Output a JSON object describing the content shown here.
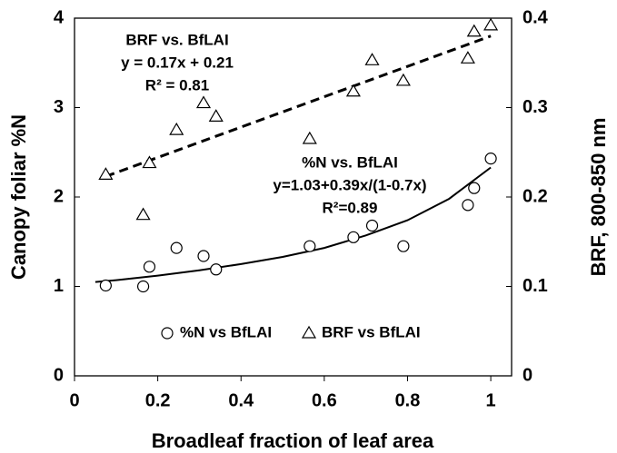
{
  "chart_data": {
    "type": "scatter",
    "xlabel": "Broadleaf fraction of leaf area",
    "ylabel": "Canopy foliar %N",
    "y2label": "BRF, 800-850 nm",
    "xlim": [
      0,
      1.05
    ],
    "xticks": [
      0,
      0.2,
      0.4,
      0.6,
      0.8,
      1
    ],
    "ylim": [
      0,
      4
    ],
    "yticks": [
      0,
      1,
      2,
      3,
      4
    ],
    "y2lim": [
      0,
      0.4
    ],
    "y2ticks": [
      0,
      0.1,
      0.2,
      0.3,
      0.4
    ],
    "series": [
      {
        "name": "%N vs BfLAI",
        "marker": "circle",
        "color": "#000000",
        "x": [
          0.075,
          0.165,
          0.18,
          0.245,
          0.31,
          0.34,
          0.565,
          0.67,
          0.715,
          0.79,
          0.945,
          0.96,
          1.0
        ],
        "values": [
          1.01,
          1.0,
          1.22,
          1.43,
          1.34,
          1.19,
          1.45,
          1.55,
          1.68,
          1.45,
          1.91,
          2.1,
          2.43
        ]
      },
      {
        "name": "BRF vs BfLAI",
        "marker": "triangle",
        "color": "#000000",
        "axis": "y2",
        "x": [
          0.075,
          0.165,
          0.18,
          0.245,
          0.31,
          0.34,
          0.565,
          0.67,
          0.715,
          0.79,
          0.945,
          0.96,
          1.0
        ],
        "values": [
          0.225,
          0.18,
          0.238,
          0.275,
          0.305,
          0.29,
          0.265,
          0.318,
          0.353,
          0.33,
          0.355,
          0.385,
          0.392
        ]
      }
    ],
    "fits": [
      {
        "dash": false,
        "x": [
          0.05,
          0.1,
          0.2,
          0.3,
          0.4,
          0.5,
          0.6,
          0.7,
          0.8,
          0.9,
          1.0
        ],
        "values": [
          1.05,
          1.07,
          1.12,
          1.18,
          1.25,
          1.33,
          1.43,
          1.57,
          1.74,
          1.98,
          2.33
        ]
      },
      {
        "dash": true,
        "axis": "y2",
        "x": [
          0.075,
          1.0
        ],
        "values": [
          0.223,
          0.38
        ]
      }
    ],
    "annotations": [
      [
        "BRF vs. BfLAI",
        "y = 0.17x + 0.21",
        "R² = 0.81"
      ],
      [
        "%N vs. BfLAI",
        "y=1.03+0.39x/(1-0.7x)",
        "R²=0.89"
      ]
    ]
  }
}
